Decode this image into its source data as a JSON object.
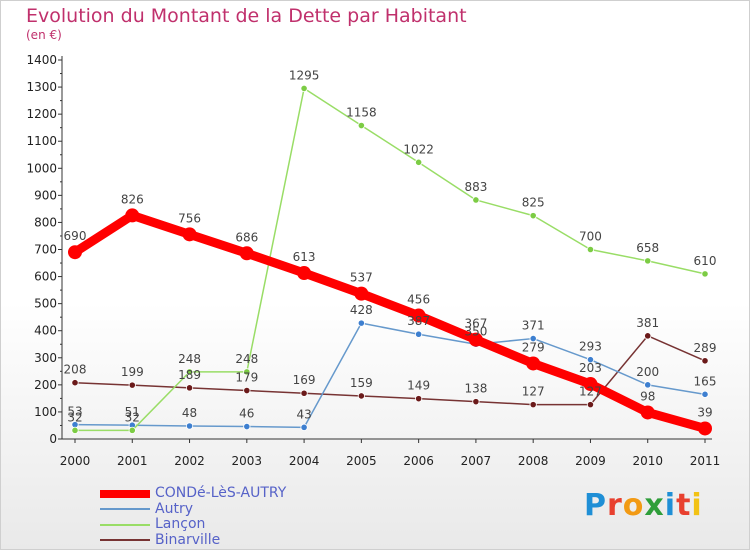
{
  "header": {
    "title": "Evolution du Montant de la Dette par Habitant",
    "unit": "(en €)"
  },
  "logo": {
    "text": "Proxiti"
  },
  "chart_data": {
    "type": "line",
    "title": "Evolution du Montant de la Dette par Habitant",
    "subtitle": "(en €)",
    "x": [
      "2000",
      "2001",
      "2002",
      "2003",
      "2004",
      "2005",
      "2006",
      "2007",
      "2008",
      "2009",
      "2010",
      "2011"
    ],
    "ylim": [
      0,
      1400
    ],
    "yticks": [
      0,
      100,
      200,
      300,
      400,
      500,
      600,
      700,
      800,
      900,
      1000,
      1100,
      1200,
      1300,
      1400
    ],
    "grid": false,
    "legend_position": "bottom-left",
    "series": [
      {
        "name": "CONDé-LèS-AUTRY",
        "color": "#ff0000",
        "values": [
          690,
          826,
          756,
          686,
          613,
          537,
          456,
          367,
          279,
          203,
          98,
          39
        ]
      },
      {
        "name": "Autry",
        "color": "#6699cc",
        "values": [
          53,
          51,
          48,
          46,
          43,
          428,
          387,
          350,
          371,
          293,
          200,
          165
        ]
      },
      {
        "name": "Lançon",
        "color": "#99dd66",
        "values": [
          32,
          32,
          248,
          248,
          1295,
          1158,
          1022,
          883,
          825,
          700,
          658,
          610
        ]
      },
      {
        "name": "Binarville",
        "color": "#773333",
        "values": [
          208,
          199,
          189,
          179,
          169,
          159,
          149,
          138,
          127,
          127,
          381,
          289
        ]
      }
    ]
  }
}
